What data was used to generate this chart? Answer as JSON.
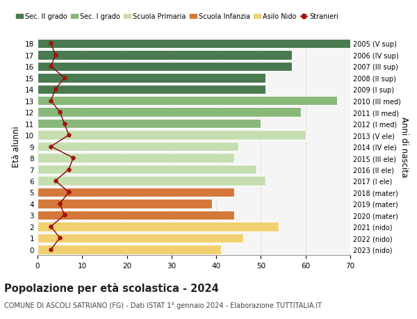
{
  "ages": [
    18,
    17,
    16,
    15,
    14,
    13,
    12,
    11,
    10,
    9,
    8,
    7,
    6,
    5,
    4,
    3,
    2,
    1,
    0
  ],
  "years": [
    "2005 (V sup)",
    "2006 (IV sup)",
    "2007 (III sup)",
    "2008 (II sup)",
    "2009 (I sup)",
    "2010 (III med)",
    "2011 (II med)",
    "2012 (I med)",
    "2013 (V ele)",
    "2014 (IV ele)",
    "2015 (III ele)",
    "2016 (II ele)",
    "2017 (I ele)",
    "2018 (mater)",
    "2019 (mater)",
    "2020 (mater)",
    "2021 (nido)",
    "2022 (nido)",
    "2023 (nido)"
  ],
  "bar_values": [
    70,
    57,
    57,
    51,
    51,
    67,
    59,
    50,
    60,
    45,
    44,
    49,
    51,
    44,
    39,
    44,
    54,
    46,
    41
  ],
  "bar_colors": [
    "#4a7a50",
    "#4a7a50",
    "#4a7a50",
    "#4a7a50",
    "#4a7a50",
    "#8ab87a",
    "#8ab87a",
    "#8ab87a",
    "#c5deb0",
    "#c5deb0",
    "#c5deb0",
    "#c5deb0",
    "#c5deb0",
    "#d4783a",
    "#d4783a",
    "#d4783a",
    "#f0d070",
    "#f0d070",
    "#f0d070"
  ],
  "stranieri_values": [
    3,
    4,
    3,
    6,
    4,
    3,
    5,
    6,
    7,
    3,
    8,
    7,
    4,
    7,
    5,
    6,
    3,
    5,
    3
  ],
  "legend_labels": [
    "Sec. II grado",
    "Sec. I grado",
    "Scuola Primaria",
    "Scuola Infanzia",
    "Asilo Nido",
    "Stranieri"
  ],
  "legend_colors": [
    "#4a7a50",
    "#8ab87a",
    "#c5deb0",
    "#d4783a",
    "#f0d070",
    "#aa1111"
  ],
  "title": "Popolazione per età scolastica - 2024",
  "subtitle": "COMUNE DI ASCOLI SATRIANO (FG) - Dati ISTAT 1° gennaio 2024 - Elaborazione TUTTITALIA.IT",
  "ylabel": "Età alunni",
  "y2label": "Anni di nascita",
  "xlim": [
    0,
    70
  ],
  "background_color": "#ffffff",
  "plot_bg_color": "#f5f5f5",
  "grid_color": "#dddddd",
  "bar_height": 0.82
}
